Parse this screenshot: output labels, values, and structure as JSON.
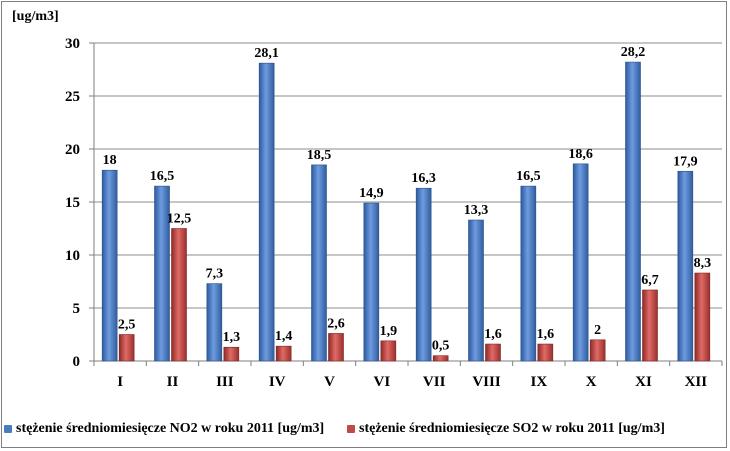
{
  "chart_data": {
    "type": "bar",
    "unit_label": "[ug/m3]",
    "categories": [
      "I",
      "II",
      "III",
      "IV",
      "V",
      "VI",
      "VII",
      "VIII",
      "IX",
      "X",
      "XI",
      "XII"
    ],
    "series": [
      {
        "name": "stężenie średniomiesięcze NO2 w roku 2011 [ug/m3]",
        "color": "#4a7ebb",
        "values": [
          18,
          16.5,
          7.3,
          28.1,
          18.5,
          14.9,
          16.3,
          13.3,
          16.5,
          18.6,
          28.2,
          17.9
        ],
        "labels": [
          "18",
          "16,5",
          "7,3",
          "28,1",
          "18,5",
          "14,9",
          "16,3",
          "13,3",
          "16,5",
          "18,6",
          "28,2",
          "17,9"
        ]
      },
      {
        "name": "stężenie średniomiesięcze SO2 w roku 2011 [ug/m3]",
        "color": "#be4b48",
        "values": [
          2.5,
          12.5,
          1.3,
          1.4,
          2.6,
          1.9,
          0.5,
          1.6,
          1.6,
          2,
          6.7,
          8.3
        ],
        "labels": [
          "2,5",
          "12,5",
          "1,3",
          "1,4",
          "2,6",
          "1,9",
          "0,5",
          "1,6",
          "1,6",
          "2",
          "6,7",
          "8,3"
        ]
      }
    ],
    "ylim": [
      0,
      30
    ],
    "yticks": [
      0,
      5,
      10,
      15,
      20,
      25,
      30
    ],
    "grid": true,
    "legend_position": "bottom"
  }
}
